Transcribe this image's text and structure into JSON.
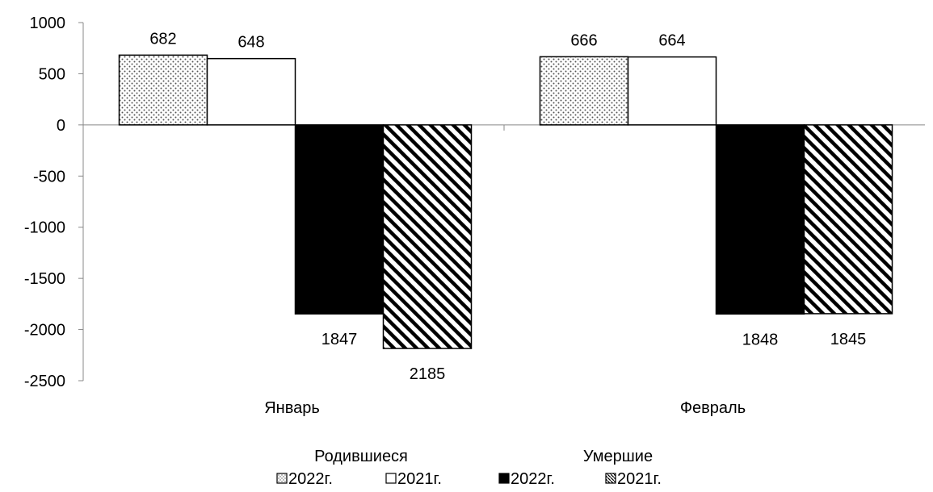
{
  "chart_data": {
    "type": "bar",
    "categories": [
      "Январь",
      "Февраль"
    ],
    "ylim": [
      -2500,
      1000
    ],
    "yticks": [
      1000,
      500,
      0,
      -500,
      -1000,
      -1500,
      -2000,
      -2500
    ],
    "grid": false,
    "series": [
      {
        "name": "2022г.",
        "values": [
          682,
          666
        ],
        "labels": [
          "682",
          "666"
        ],
        "pattern": "dots",
        "group": "Родившиеся"
      },
      {
        "name": "2021г.",
        "values": [
          648,
          664
        ],
        "labels": [
          "648",
          "664"
        ],
        "pattern": "white",
        "group": "Родившиеся"
      },
      {
        "name": "2022г.",
        "values": [
          -1847,
          -1848
        ],
        "labels": [
          "1847",
          "1848"
        ],
        "pattern": "black",
        "group": "Умершие"
      },
      {
        "name": "2021г.",
        "values": [
          -2185,
          -1845
        ],
        "labels": [
          "2185",
          "1845"
        ],
        "pattern": "stripes",
        "group": "Умершие"
      }
    ],
    "legend": {
      "placement": "bottom",
      "group_titles": [
        "Родившиеся",
        "Умершие"
      ]
    }
  }
}
